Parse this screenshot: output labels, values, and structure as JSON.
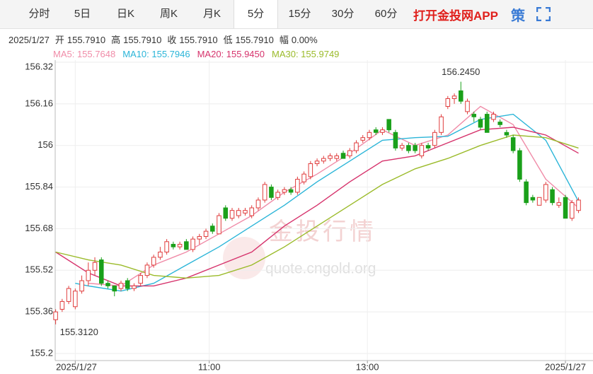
{
  "tabs": [
    "分时",
    "5日",
    "日K",
    "周K",
    "月K",
    "5分",
    "15分",
    "30分",
    "60分"
  ],
  "active_tab": 5,
  "app_link": "打开金投网APP",
  "strategy_icon": "策",
  "info": {
    "date": "2025/1/27",
    "fields": [
      {
        "label": "开",
        "value": "155.7910"
      },
      {
        "label": "高",
        "value": "155.7910"
      },
      {
        "label": "收",
        "value": "155.7910"
      },
      {
        "label": "低",
        "value": "155.7910"
      },
      {
        "label": "幅",
        "value": "0.00%"
      }
    ]
  },
  "chart_data": {
    "type": "candlestick",
    "up_color": "#e03c3c",
    "down_color": "#1aa01a",
    "open": [
      155.33,
      155.37,
      155.4,
      155.38,
      155.44,
      155.48,
      155.52,
      155.56,
      155.47,
      155.46,
      155.45,
      155.48,
      155.45,
      155.47,
      155.5,
      155.54,
      155.57,
      155.59,
      155.62,
      155.61,
      155.63,
      155.6,
      155.64,
      155.65,
      155.69,
      155.66,
      155.76,
      155.72,
      155.73,
      155.74,
      155.73,
      155.76,
      155.79,
      155.84,
      155.8,
      155.82,
      155.83,
      155.82,
      155.86,
      155.88,
      155.93,
      155.94,
      155.95,
      155.95,
      155.97,
      155.96,
      155.98,
      156.02,
      156.03,
      156.06,
      156.05,
      156.1,
      156.05,
      155.99,
      156.0,
      156.0,
      155.96,
      156.0,
      156.0,
      156.05,
      156.15,
      156.18,
      156.21,
      156.13,
      156.12,
      156.1,
      156.12,
      156.1,
      156.09,
      156.05,
      156.03,
      155.98,
      155.86,
      155.8,
      155.77,
      155.79,
      155.83,
      155.77,
      155.8,
      155.72,
      155.75
    ],
    "high": [
      155.37,
      155.41,
      155.46,
      155.45,
      155.5,
      155.55,
      155.57,
      155.57,
      155.48,
      155.46,
      155.48,
      155.49,
      155.47,
      155.51,
      155.55,
      155.58,
      155.61,
      155.64,
      155.63,
      155.63,
      155.64,
      155.65,
      155.66,
      155.68,
      155.7,
      155.74,
      155.77,
      155.76,
      155.76,
      155.76,
      155.77,
      155.8,
      155.86,
      155.85,
      155.83,
      155.84,
      155.84,
      155.88,
      155.9,
      155.94,
      155.95,
      155.96,
      155.97,
      155.97,
      155.98,
      155.99,
      156.02,
      156.04,
      156.06,
      156.07,
      156.07,
      156.1,
      156.06,
      156.01,
      156.01,
      156.01,
      156.01,
      156.01,
      156.06,
      156.12,
      156.19,
      156.2,
      156.245,
      156.18,
      156.13,
      156.11,
      156.13,
      156.13,
      156.1,
      156.06,
      156.04,
      155.99,
      155.87,
      155.81,
      155.8,
      155.86,
      155.84,
      155.8,
      155.81,
      155.79,
      155.8
    ],
    "low": [
      155.312,
      155.36,
      155.39,
      155.37,
      155.43,
      155.46,
      155.5,
      155.46,
      155.45,
      155.42,
      155.44,
      155.44,
      155.44,
      155.46,
      155.49,
      155.53,
      155.56,
      155.58,
      155.6,
      155.6,
      155.6,
      155.59,
      155.62,
      155.64,
      155.66,
      155.66,
      155.71,
      155.71,
      155.72,
      155.73,
      155.72,
      155.75,
      155.78,
      155.79,
      155.79,
      155.81,
      155.81,
      155.81,
      155.85,
      155.87,
      155.92,
      155.93,
      155.94,
      155.94,
      155.95,
      155.95,
      155.97,
      156.01,
      156.02,
      156.04,
      156.04,
      156.05,
      155.98,
      155.98,
      155.97,
      155.97,
      155.95,
      155.98,
      155.99,
      156.04,
      156.14,
      156.16,
      156.16,
      156.12,
      156.09,
      156.06,
      156.05,
      156.09,
      156.07,
      156.03,
      155.97,
      155.86,
      155.77,
      155.78,
      155.77,
      155.78,
      155.77,
      155.76,
      155.72,
      155.71,
      155.74
    ],
    "close": [
      155.36,
      155.4,
      155.45,
      155.44,
      155.48,
      155.52,
      155.55,
      155.47,
      155.46,
      155.44,
      155.47,
      155.45,
      155.46,
      155.5,
      155.54,
      155.57,
      155.59,
      155.63,
      155.61,
      155.62,
      155.6,
      155.64,
      155.65,
      155.67,
      155.67,
      155.73,
      155.72,
      155.75,
      155.75,
      155.75,
      155.76,
      155.79,
      155.85,
      155.8,
      155.82,
      155.83,
      155.82,
      155.87,
      155.89,
      155.93,
      155.94,
      155.95,
      155.96,
      155.96,
      155.95,
      155.98,
      156.01,
      156.03,
      156.05,
      156.05,
      156.06,
      156.06,
      155.99,
      156.0,
      155.98,
      155.98,
      156.0,
      155.99,
      156.05,
      156.11,
      156.18,
      156.19,
      156.17,
      156.17,
      156.11,
      156.07,
      156.05,
      156.12,
      156.08,
      156.04,
      155.98,
      155.87,
      155.78,
      155.79,
      155.8,
      155.85,
      155.78,
      155.78,
      155.72,
      155.78,
      155.79
    ],
    "ma": [
      {
        "color": "#f08ca8",
        "x": [
          5,
          10,
          15,
          20,
          25,
          30,
          35,
          40,
          45,
          50,
          55,
          60,
          65,
          70,
          75,
          80
        ],
        "values": [
          155.47,
          155.46,
          155.54,
          155.59,
          155.66,
          155.73,
          155.82,
          155.89,
          155.97,
          156.06,
          156.0,
          156.04,
          156.15,
          156.08,
          155.87,
          155.76
        ]
      },
      {
        "color": "#2bb5d8",
        "x": [
          3,
          5,
          10,
          15,
          20,
          25,
          30,
          35,
          40,
          45,
          50,
          55,
          60,
          65,
          70,
          75,
          80
        ],
        "values": [
          155.47,
          155.46,
          155.44,
          155.47,
          155.54,
          155.61,
          155.69,
          155.77,
          155.86,
          155.94,
          156.02,
          156.03,
          156.035,
          156.1,
          156.12,
          156.02,
          155.785
        ]
      },
      {
        "color": "#d6336c",
        "x": [
          0,
          5,
          10,
          15,
          20,
          25,
          30,
          35,
          40,
          45,
          50,
          55,
          60,
          65,
          70,
          75,
          80
        ],
        "values": [
          155.59,
          155.51,
          155.46,
          155.46,
          155.49,
          155.54,
          155.59,
          155.69,
          155.77,
          155.86,
          155.94,
          155.96,
          156.01,
          156.06,
          156.07,
          156.04,
          155.97
        ]
      },
      {
        "color": "#9bbb2a",
        "x": [
          0,
          5,
          10,
          15,
          20,
          25,
          30,
          35,
          40,
          45,
          50,
          55,
          60,
          65,
          70,
          75,
          80
        ],
        "values": [
          155.59,
          155.56,
          155.54,
          155.5,
          155.49,
          155.5,
          155.54,
          155.61,
          155.69,
          155.77,
          155.85,
          155.91,
          155.95,
          156.0,
          156.04,
          156.03,
          155.99
        ]
      }
    ],
    "legend": [
      "MA5: 155.7648",
      "MA10: 155.7946",
      "MA20: 155.9450",
      "MA30: 155.9749"
    ],
    "high_label": "156.2450",
    "low_label": "155.3120",
    "watermark": [
      "金投行情",
      "quote.cngold.org"
    ],
    "xlim": [
      -0.5,
      82
    ],
    "ylim": [
      155.2,
      156.32
    ],
    "yticks": [
      156.32,
      156.16,
      156,
      155.84,
      155.68,
      155.52,
      155.36,
      155.2
    ],
    "xticks": [
      {
        "value": 3,
        "label": "2025/1/27"
      },
      {
        "value": 23.5,
        "label": "11:00"
      },
      {
        "value": 47.7,
        "label": "13:00"
      },
      {
        "value": 78,
        "label": "2025/1/27"
      }
    ],
    "grid": true
  }
}
